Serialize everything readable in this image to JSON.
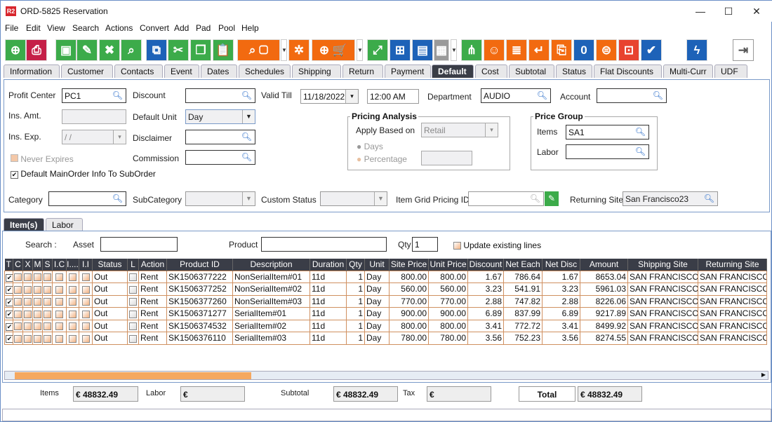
{
  "window": {
    "title": "ORD-5825 Reservation",
    "logo": "R2",
    "minimize": "—",
    "maximize": "☐",
    "close": "✕"
  },
  "menu": [
    "File",
    "Edit",
    "View",
    "Search",
    "Actions",
    "Convert",
    "Add",
    "Pad",
    "Pool",
    "Help"
  ],
  "toolbar": [
    {
      "icon": "new-document-icon",
      "color": "#3cab4a",
      "glyph": "⊕"
    },
    {
      "icon": "print-icon",
      "color": "#c52048",
      "glyph": "⎙"
    },
    {
      "icon": "save-icon",
      "color": "#3cab4a",
      "glyph": "▣"
    },
    {
      "icon": "edit-icon",
      "color": "#3cab4a",
      "glyph": "✎"
    },
    {
      "icon": "delete-icon",
      "color": "#3cab4a",
      "glyph": "✖"
    },
    {
      "icon": "search-icon",
      "color": "#3cab4a",
      "glyph": "⌕"
    },
    {
      "icon": "copy-number-icon",
      "color": "#1d62b8",
      "glyph": "⧉"
    },
    {
      "icon": "scissors-icon",
      "color": "#3cab4a",
      "glyph": "✂"
    },
    {
      "icon": "copy-icon",
      "color": "#3cab4a",
      "glyph": "❐"
    },
    {
      "icon": "paste-icon",
      "color": "#3cab4a",
      "glyph": "📋"
    },
    {
      "icon": "search-product-icon",
      "color": "#f26a10",
      "glyph": "⌕ ▢"
    },
    {
      "icon": "gears-icon",
      "color": "#f26a10",
      "glyph": "✲"
    },
    {
      "icon": "add-cart-po-icon",
      "color": "#f26a10",
      "glyph": "⊕ 🛒"
    },
    {
      "icon": "expand-icon",
      "color": "#3cab4a",
      "glyph": "⤢"
    },
    {
      "icon": "network-icon",
      "color": "#1d62b8",
      "glyph": "⊞"
    },
    {
      "icon": "message-icon",
      "color": "#1d62b8",
      "glyph": "▤"
    },
    {
      "icon": "calendar-icon",
      "color": "#9a9a9a",
      "glyph": "▦"
    },
    {
      "icon": "hierarchy-icon",
      "color": "#3cab4a",
      "glyph": "⋔"
    },
    {
      "icon": "smile-icon",
      "color": "#f26a10",
      "glyph": "☺"
    },
    {
      "icon": "scroll-icon",
      "color": "#f26a10",
      "glyph": "≣"
    },
    {
      "icon": "return-icon",
      "color": "#f26a10",
      "glyph": "↵"
    },
    {
      "icon": "box-return-icon",
      "color": "#f26a10",
      "glyph": "⎘"
    },
    {
      "icon": "chat-zero-icon",
      "color": "#1d62b8",
      "glyph": "0"
    },
    {
      "icon": "coins-add-icon",
      "color": "#f26a10",
      "glyph": "⊜"
    },
    {
      "icon": "safe-icon",
      "color": "#e8432f",
      "glyph": "⊡"
    },
    {
      "icon": "truck-check-icon",
      "color": "#1d62b8",
      "glyph": "✔"
    },
    {
      "icon": "lightning-icon",
      "color": "#1d62b8",
      "glyph": "ϟ"
    },
    {
      "icon": "exit-icon",
      "color": "#ffffff",
      "glyph": "⇥"
    }
  ],
  "tabs": [
    "Information",
    "Customer",
    "Contacts",
    "Event",
    "Dates",
    "Schedules",
    "Shipping",
    "Return",
    "Payment",
    "Default",
    "Cost",
    "Subtotal",
    "Status",
    "Flat Discounts",
    "Multi-Curr",
    "UDF"
  ],
  "selected_tab": "Default",
  "form": {
    "profit_center_label": "Profit Center",
    "profit_center": "PC1",
    "ins_amt_label": "Ins. Amt.",
    "ins_amt": "",
    "ins_exp_label": "Ins. Exp.",
    "ins_exp": "/ /",
    "never_expires_label": "Never Expires",
    "default_main_label": "Default MainOrder Info To SubOrder",
    "default_main_checked": true,
    "discount_label": "Discount",
    "discount": "",
    "default_unit_label": "Default Unit",
    "default_unit": "Day",
    "disclaimer_label": "Disclaimer",
    "disclaimer": "",
    "commission_label": "Commission",
    "commission": "",
    "valid_till_label": "Valid Till",
    "valid_till_date": "11/18/2022",
    "valid_till_time": "12:00 AM",
    "department_label": "Department",
    "department": "AUDIO",
    "account_label": "Account",
    "account": "",
    "pricing_analysis_label": "Pricing Analysis",
    "apply_based_on_label": "Apply Based on",
    "apply_based_on": "Retail",
    "days_label": "Days",
    "percentage_label": "Percentage",
    "percentage": "",
    "price_group_label": "Price Group",
    "items_label": "Items",
    "items": "SA1",
    "labor_label": "Labor",
    "labor": "",
    "category_label": "Category",
    "category": "",
    "subcategory_label": "SubCategory",
    "subcategory": "",
    "custom_status_label": "Custom Status",
    "custom_status": "",
    "item_grid_pricing_label": "Item Grid Pricing ID",
    "item_grid_pricing": "",
    "returning_site_label": "Returning Site",
    "returning_site": "San Francisco23"
  },
  "subtabs": [
    "Item(s)",
    "Labor"
  ],
  "search": {
    "label": "Search :",
    "asset_label": "Asset",
    "asset": "",
    "product_label": "Product",
    "product": "",
    "qty_label": "Qty",
    "qty": "1",
    "update_label": "Update existing lines"
  },
  "grid": {
    "columns": [
      "T",
      "C",
      "X",
      "M",
      "S",
      "I.C",
      "I....",
      "I.I",
      "Status",
      "L",
      "Action",
      "Product ID",
      "Description",
      "Duration",
      "Qty",
      "Unit",
      "Site Price",
      "Unit Price",
      "Discount",
      "Net Each",
      "Net Disc",
      "Amount",
      "Shipping Site",
      "Returning Site"
    ],
    "rows": [
      [
        "Out",
        "Rent",
        "SK1506377222",
        "NonSerialItem#01",
        "11d",
        "1",
        "Day",
        "800.00",
        "800.00",
        "1.67",
        "786.64",
        "1.67",
        "8653.04",
        "SAN FRANCISCO",
        "SAN FRANCISCO"
      ],
      [
        "Out",
        "Rent",
        "SK1506377252",
        "NonSerialItem#02",
        "11d",
        "1",
        "Day",
        "560.00",
        "560.00",
        "3.23",
        "541.91",
        "3.23",
        "5961.03",
        "SAN FRANCISCO",
        "SAN FRANCISCO"
      ],
      [
        "Out",
        "Rent",
        "SK1506377260",
        "NonSerialItem#03",
        "11d",
        "1",
        "Day",
        "770.00",
        "770.00",
        "2.88",
        "747.82",
        "2.88",
        "8226.06",
        "SAN FRANCISCO",
        "SAN FRANCISCO"
      ],
      [
        "Out",
        "Rent",
        "SK1506371277",
        "SerialItem#01",
        "11d",
        "1",
        "Day",
        "900.00",
        "900.00",
        "6.89",
        "837.99",
        "6.89",
        "9217.89",
        "SAN FRANCISCO",
        "SAN FRANCISCO"
      ],
      [
        "Out",
        "Rent",
        "SK1506374532",
        "SerialItem#02",
        "11d",
        "1",
        "Day",
        "800.00",
        "800.00",
        "3.41",
        "772.72",
        "3.41",
        "8499.92",
        "SAN FRANCISCO",
        "SAN FRANCISCO"
      ],
      [
        "Out",
        "Rent",
        "SK1506376110",
        "SerialItem#03",
        "11d",
        "1",
        "Day",
        "780.00",
        "780.00",
        "3.56",
        "752.23",
        "3.56",
        "8274.55",
        "SAN FRANCISCO",
        "SAN FRANCISCO"
      ]
    ]
  },
  "totals": {
    "items_label": "Items",
    "items": "€ 48832.49",
    "labor_label": "Labor",
    "labor": "€",
    "subtotal_label": "Subtotal",
    "subtotal": "€ 48832.49",
    "tax_label": "Tax",
    "tax": "€",
    "total_label": "Total",
    "total": "€ 48832.49"
  }
}
